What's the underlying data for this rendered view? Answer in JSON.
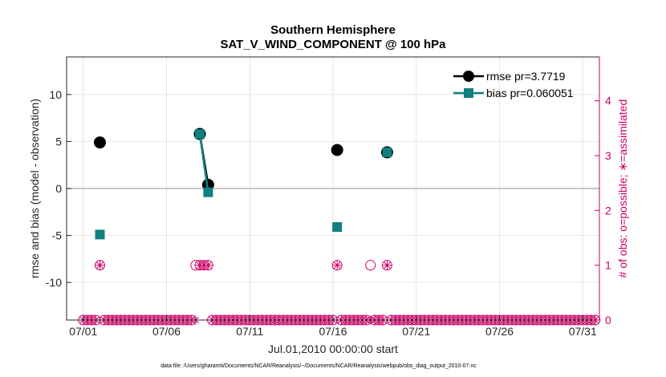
{
  "chart_data": {
    "type": "line",
    "title": "Southern Hemisphere",
    "subtitle": "SAT_V_WIND_COMPONENT @ 100 hPa",
    "xlabel": "Jul.01,2010 00:00:00 start",
    "ylabel": "rmse and bias (model - observation)",
    "ylabel_right": "# of obs: o=possible; ∗=assimilated",
    "xlim": [
      "2010-06-30",
      "2010-08-01"
    ],
    "ylim": [
      -14,
      14
    ],
    "ylim_right": [
      0,
      4.8
    ],
    "x_ticks": [
      "07/01",
      "07/06",
      "07/11",
      "07/16",
      "07/21",
      "07/26",
      "07/31"
    ],
    "y_ticks": [
      "-10",
      "-5",
      "0",
      "5",
      "10"
    ],
    "y_ticks_right": [
      "0",
      "1",
      "2",
      "3",
      "4"
    ],
    "grid": true,
    "legend_position": "top-right",
    "series": [
      {
        "name": "rmse pr=3.7719",
        "color": "#000000",
        "marker": "circle",
        "x": [
          "2010-07-02 00:00",
          "2010-07-08 00:00",
          "2010-07-08 12:00",
          "2010-07-16 06:00",
          "2010-07-19 06:00"
        ],
        "y": [
          4.9,
          5.8,
          0.4,
          4.1,
          3.85
        ]
      },
      {
        "name": "bias pr=0.060051",
        "color": "#0f7f7f",
        "marker": "square",
        "x": [
          "2010-07-02 00:00",
          "2010-07-08 00:00",
          "2010-07-08 12:00",
          "2010-07-16 06:00",
          "2010-07-19 06:00"
        ],
        "y": [
          -4.9,
          5.8,
          -0.4,
          -4.1,
          3.85
        ]
      }
    ],
    "obs_counts": {
      "color": "#cc0066",
      "time_step_hours": 6,
      "possible_one": [
        "2010-07-02 00:00",
        "2010-07-07 18:00",
        "2010-07-08 00:00",
        "2010-07-08 06:00",
        "2010-07-08 12:00",
        "2010-07-16 06:00",
        "2010-07-18 06:00",
        "2010-07-19 06:00"
      ],
      "assimilated_one": [
        "2010-07-02 00:00",
        "2010-07-08 00:00",
        "2010-07-08 06:00",
        "2010-07-08 12:00",
        "2010-07-16 06:00",
        "2010-07-19 06:00"
      ]
    }
  },
  "footnote": "data file: /Users/gharamti/Documents/NCAR/Reanalysis/~/Documents/NCAR/Reanalysis/webpub/obs_diag_output_2010-07.nc"
}
